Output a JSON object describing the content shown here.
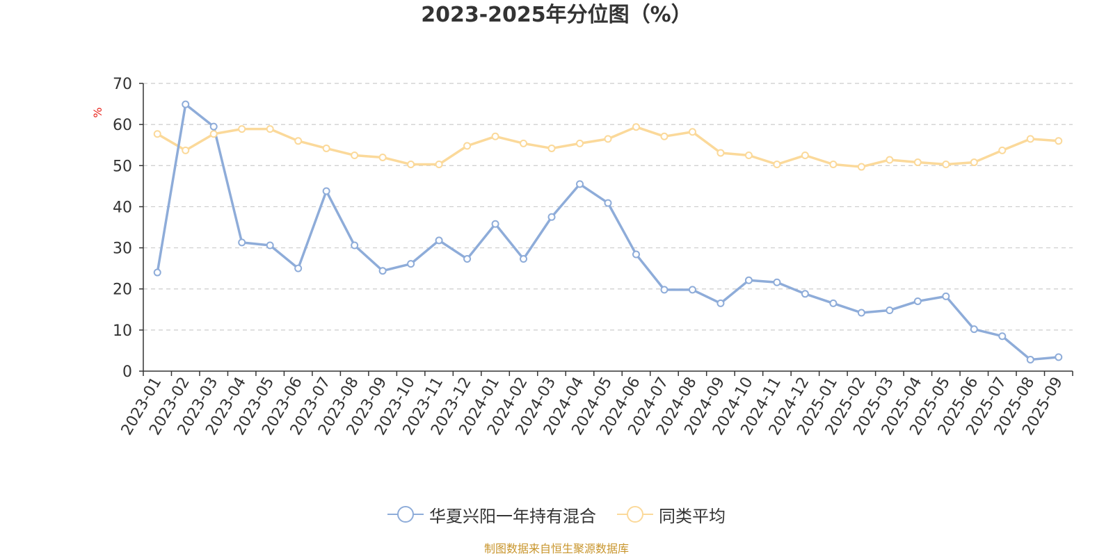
{
  "chart_data": {
    "type": "line",
    "title": "2023-2025年分位图（%）",
    "ylabel": "%",
    "xlabel": "",
    "ylim": [
      0,
      70
    ],
    "yticks": [
      0,
      10,
      20,
      30,
      40,
      50,
      60,
      70
    ],
    "grid": true,
    "legend_position": "bottom-center",
    "categories": [
      "2023-01",
      "2023-02",
      "2023-03",
      "2023-04",
      "2023-05",
      "2023-06",
      "2023-07",
      "2023-08",
      "2023-09",
      "2023-10",
      "2023-11",
      "2023-12",
      "2024-01",
      "2024-02",
      "2024-03",
      "2024-04",
      "2024-05",
      "2024-06",
      "2024-07",
      "2024-08",
      "2024-09",
      "2024-10",
      "2024-11",
      "2024-12",
      "2025-01",
      "2025-02",
      "2025-03",
      "2025-04",
      "2025-05",
      "2025-06",
      "2025-07",
      "2025-08",
      "2025-09"
    ],
    "series": [
      {
        "name": "华夏兴阳一年持有混合",
        "color": "#8eacd9",
        "values": [
          24.0,
          64.9,
          59.5,
          31.3,
          30.6,
          25.0,
          43.8,
          30.6,
          24.4,
          26.1,
          31.8,
          27.3,
          35.8,
          27.3,
          37.5,
          45.5,
          40.9,
          28.4,
          19.8,
          19.8,
          16.5,
          22.1,
          21.6,
          18.8,
          16.5,
          14.2,
          14.8,
          17.0,
          18.2,
          10.2,
          8.5,
          2.8,
          3.4
        ]
      },
      {
        "name": "同类平均",
        "color": "#fbd99a",
        "values": [
          57.7,
          53.7,
          57.7,
          58.9,
          58.9,
          56.0,
          54.2,
          52.5,
          52.0,
          50.3,
          50.3,
          54.8,
          57.1,
          55.4,
          54.2,
          55.4,
          56.5,
          59.4,
          57.1,
          58.2,
          53.1,
          52.5,
          50.3,
          52.5,
          50.3,
          49.7,
          51.4,
          50.8,
          50.3,
          50.8,
          53.7,
          56.5,
          56.0
        ]
      }
    ],
    "source_note": "制图数据来自恒生聚源数据库"
  }
}
